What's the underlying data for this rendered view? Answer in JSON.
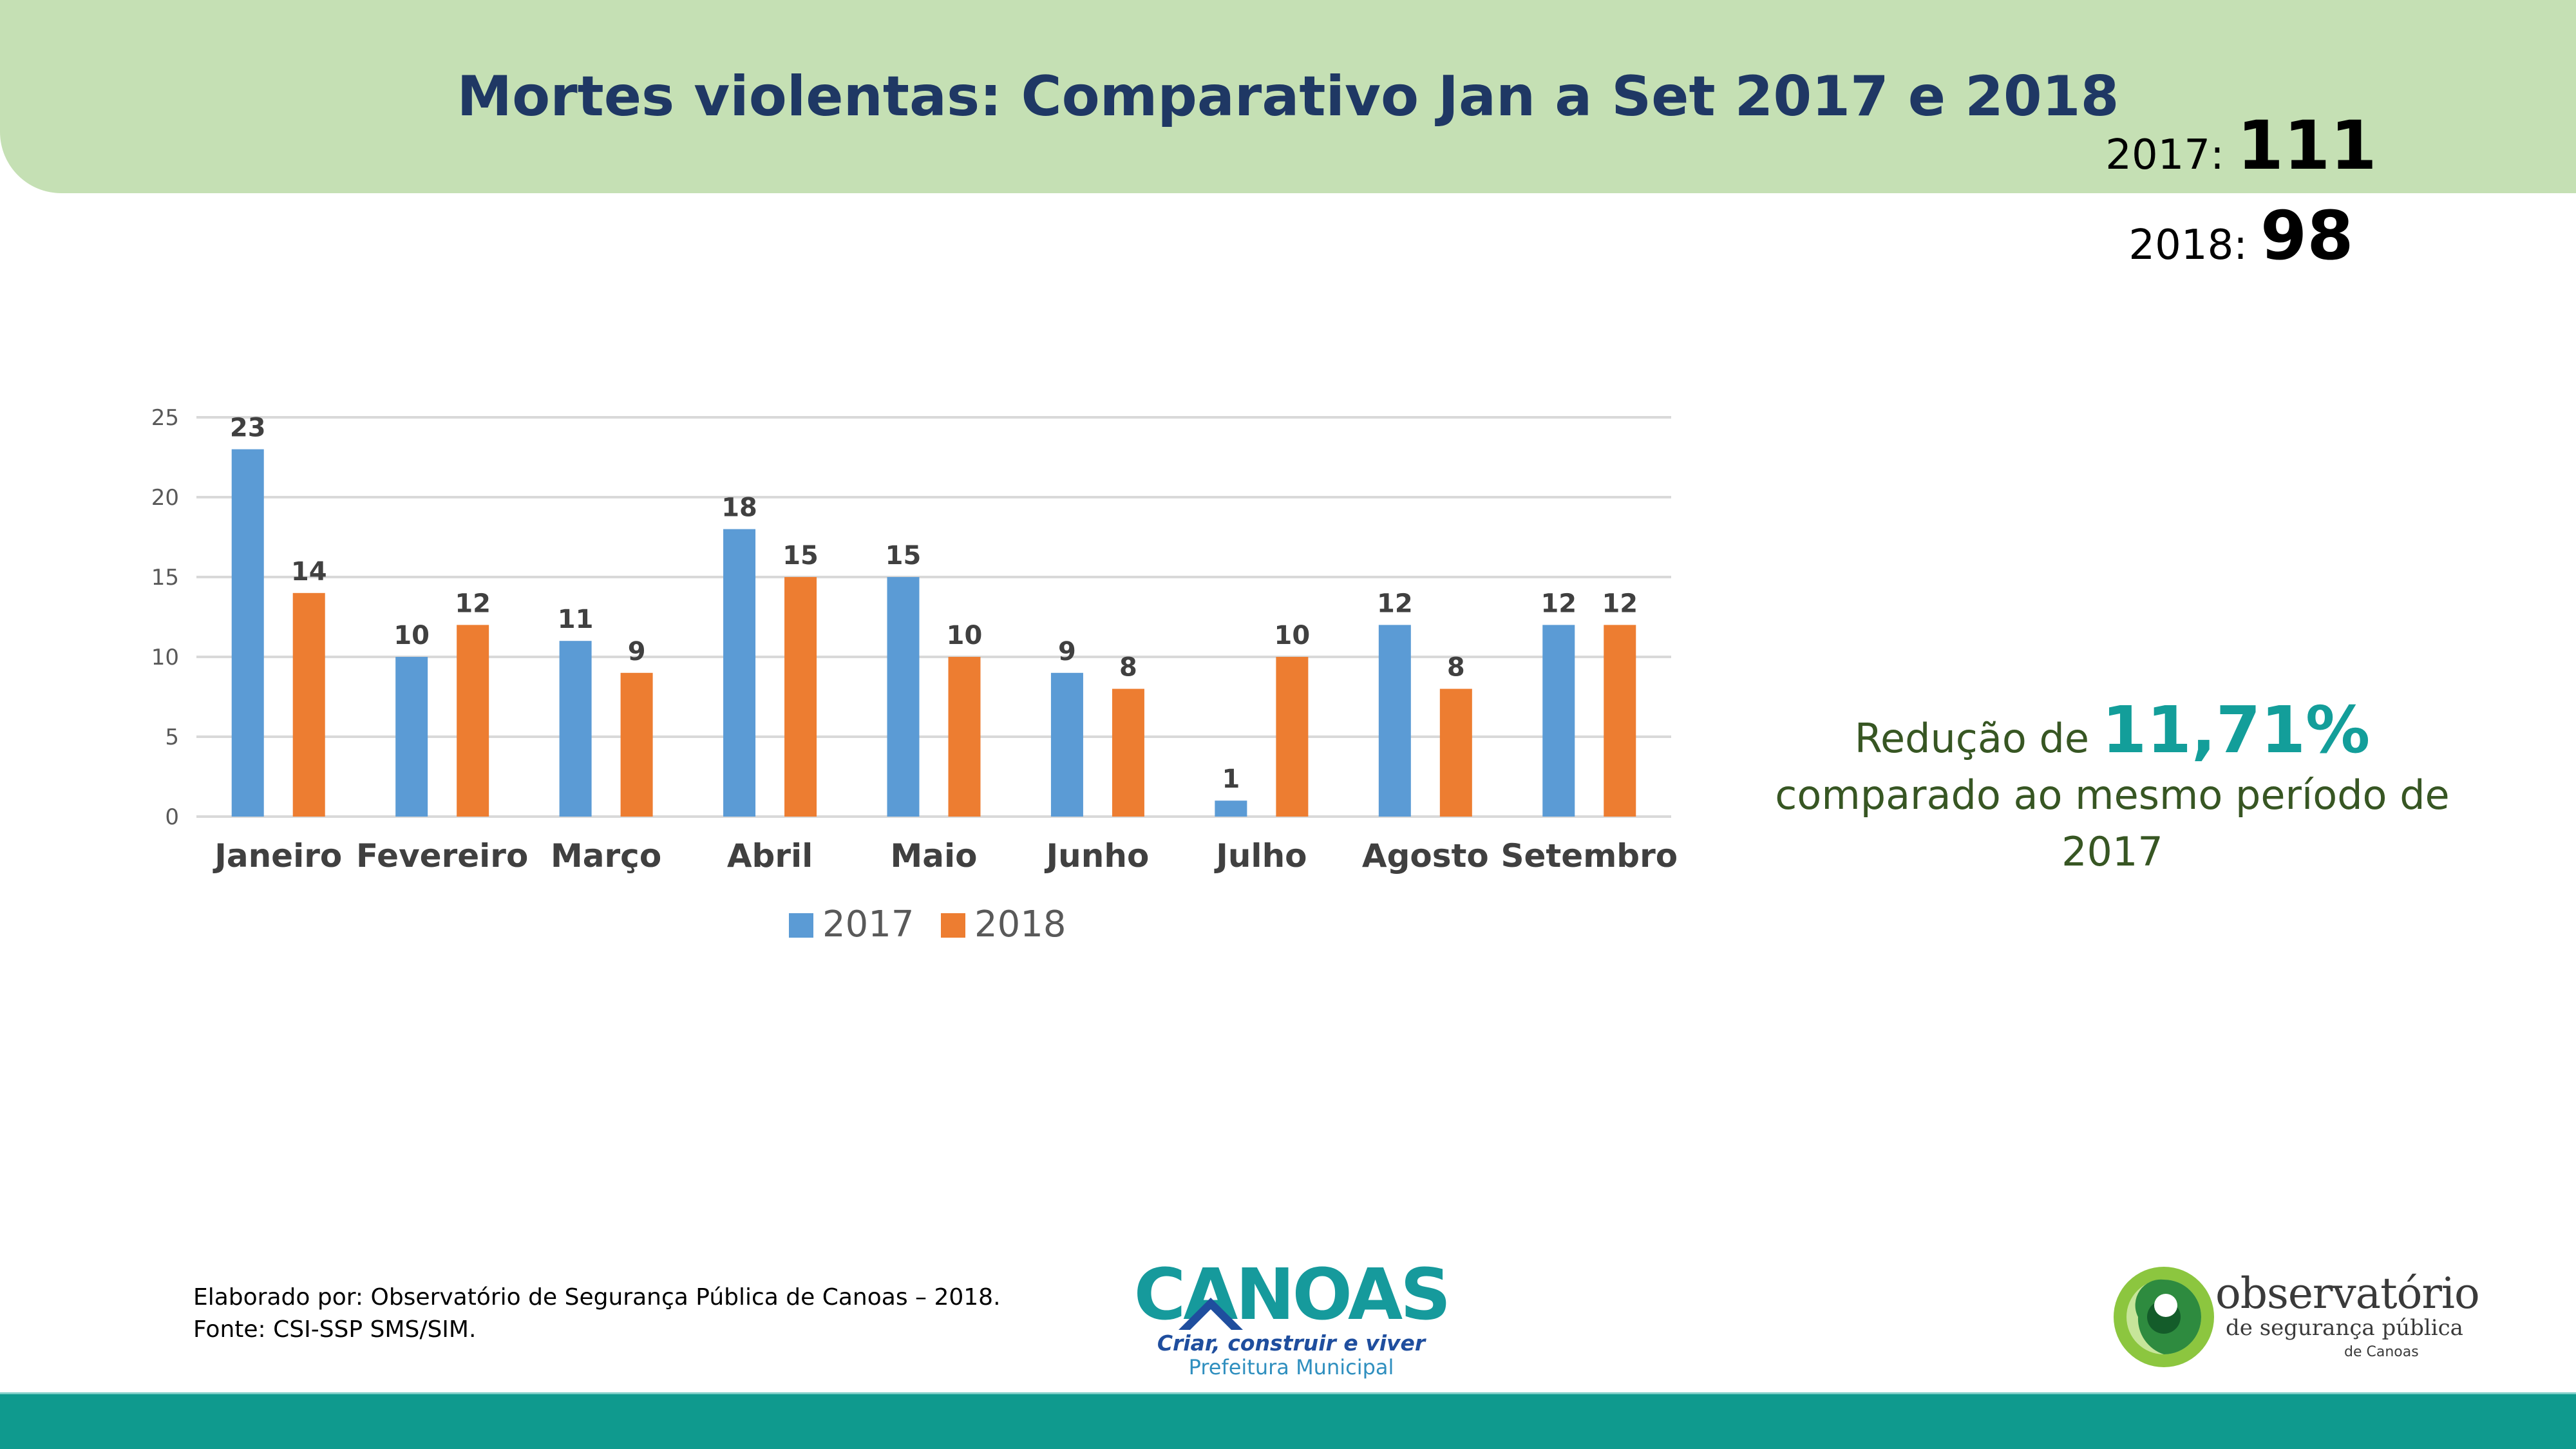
{
  "header": {
    "title": "Mortes violentas: Comparativo Jan a Set 2017 e 2018"
  },
  "chart_data": {
    "type": "bar",
    "title": "",
    "categories": [
      "Janeiro",
      "Fevereiro",
      "Março",
      "Abril",
      "Maio",
      "Junho",
      "Julho",
      "Agosto",
      "Setembro"
    ],
    "series": [
      {
        "name": "2017",
        "values": [
          23,
          10,
          11,
          18,
          15,
          9,
          1,
          12,
          12
        ],
        "color": "#5b9bd5"
      },
      {
        "name": "2018",
        "values": [
          14,
          12,
          9,
          15,
          10,
          8,
          10,
          8,
          12
        ],
        "color": "#ed7d31"
      }
    ],
    "xlabel": "",
    "ylabel": "",
    "ylim": [
      0,
      25
    ],
    "yticks": [
      0,
      5,
      10,
      15,
      20,
      25
    ],
    "grid": true,
    "legend": "bottom"
  },
  "totals": {
    "label_2017": "2017:",
    "value_2017": "111",
    "label_2018": "2018:",
    "value_2018": "98"
  },
  "reduction": {
    "prefix": "Redução  de",
    "percent": "11,71%",
    "suffix": "comparado ao mesmo período de 2017"
  },
  "footer": {
    "line1": "Elaborado por: Observatório de Segurança Pública de Canoas – 2018.",
    "line2": "Fonte: CSI-SSP SMS/SIM."
  },
  "logos": {
    "canoas_name": "CANOAS",
    "canoas_slogan": "Criar, construir e viver",
    "canoas_pref": "Prefeitura Municipal",
    "obs_title": "observatório",
    "obs_subtitle": "de segurança pública",
    "obs_city": "de Canoas"
  },
  "colors": {
    "header_bg": "#c5e0b4",
    "title": "#1f3864",
    "accent": "#139e9a",
    "text_green": "#375623",
    "footer": "#0f9a8e"
  }
}
